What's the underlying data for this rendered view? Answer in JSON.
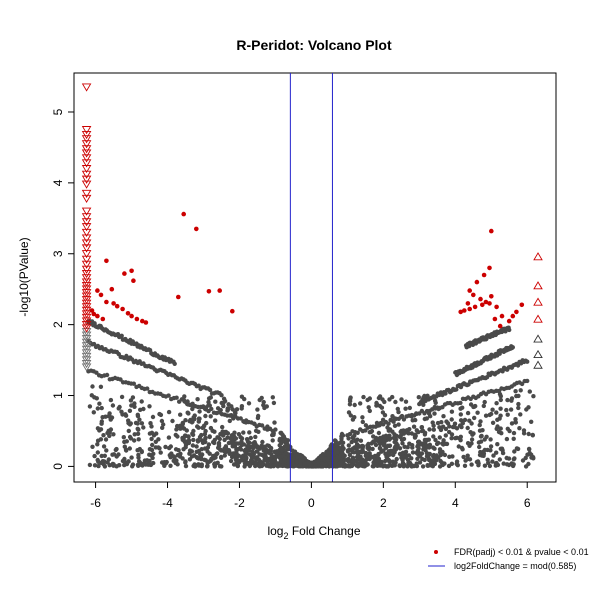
{
  "chart_data": {
    "type": "scatter",
    "title": "R-Peridot: Volcano Plot",
    "xlabel": {
      "prefix": "log",
      "subscript": "2",
      "suffix": " Fold Change"
    },
    "ylabel": "-log10(PValue)",
    "xlim": [
      -6.6,
      6.8
    ],
    "ylim": [
      -0.22,
      5.55
    ],
    "x_ticks": [
      -6,
      -4,
      -2,
      0,
      2,
      4,
      6
    ],
    "y_ticks": [
      0,
      1,
      2,
      3,
      4,
      5
    ],
    "grid": false,
    "threshold_lines": {
      "log2fc": [
        -0.585,
        0.585
      ],
      "color": "#2222cc"
    },
    "colors": {
      "background": "#4a4a4a",
      "significant": "#cc0000",
      "clipped_nonsig": "#6e6e6e"
    },
    "background_cloud": {
      "description": "dense cloud of thousands of non-significant genes",
      "v_shape_bounds": {
        "min_x": -6.2,
        "max_x": 6.2,
        "max_y_at_edges": 2.1
      },
      "bands": [
        {
          "side": "left",
          "x_from": -6.2,
          "x_to": -1.0,
          "y_at_x_from": 1.35,
          "y_at_x_to": 0.5
        },
        {
          "side": "left",
          "x_from": -6.2,
          "x_to": -2.5,
          "y_at_x_from": 1.75,
          "y_at_x_to": 1.0
        },
        {
          "side": "left",
          "x_from": -6.2,
          "x_to": -3.8,
          "y_at_x_from": 2.05,
          "y_at_x_to": 1.45
        },
        {
          "side": "right",
          "x_from": 1.0,
          "x_to": 6.0,
          "y_at_x_from": 0.45,
          "y_at_x_to": 1.2
        },
        {
          "side": "right",
          "x_from": 3.0,
          "x_to": 6.0,
          "y_at_x_from": 0.9,
          "y_at_x_to": 1.5
        },
        {
          "side": "right",
          "x_from": 4.0,
          "x_to": 5.6,
          "y_at_x_from": 1.3,
          "y_at_x_to": 1.7
        },
        {
          "side": "right",
          "x_from": 4.3,
          "x_to": 5.5,
          "y_at_x_from": 1.7,
          "y_at_x_to": 1.95
        }
      ]
    },
    "significant_points": [
      {
        "x": -3.55,
        "y": 3.56
      },
      {
        "x": -3.2,
        "y": 3.35
      },
      {
        "x": -5.0,
        "y": 2.76
      },
      {
        "x": -5.2,
        "y": 2.72
      },
      {
        "x": -5.7,
        "y": 2.9
      },
      {
        "x": -5.55,
        "y": 2.5
      },
      {
        "x": -4.95,
        "y": 2.62
      },
      {
        "x": -2.85,
        "y": 2.47
      },
      {
        "x": -2.55,
        "y": 2.48
      },
      {
        "x": -3.7,
        "y": 2.39
      },
      {
        "x": -2.2,
        "y": 2.19
      },
      {
        "x": -5.95,
        "y": 2.48
      },
      {
        "x": -5.85,
        "y": 2.42
      },
      {
        "x": -5.7,
        "y": 2.32
      },
      {
        "x": -5.5,
        "y": 2.3
      },
      {
        "x": -5.4,
        "y": 2.26
      },
      {
        "x": -5.25,
        "y": 2.22
      },
      {
        "x": -5.1,
        "y": 2.16
      },
      {
        "x": -5.0,
        "y": 2.12
      },
      {
        "x": -4.85,
        "y": 2.08
      },
      {
        "x": -4.7,
        "y": 2.05
      },
      {
        "x": -4.6,
        "y": 2.03
      },
      {
        "x": -6.05,
        "y": 2.15
      },
      {
        "x": -5.95,
        "y": 2.12
      },
      {
        "x": -6.1,
        "y": 2.2
      },
      {
        "x": -5.8,
        "y": 2.08
      },
      {
        "x": 5.0,
        "y": 3.32
      },
      {
        "x": 4.95,
        "y": 2.8
      },
      {
        "x": 4.8,
        "y": 2.7
      },
      {
        "x": 4.6,
        "y": 2.6
      },
      {
        "x": 4.4,
        "y": 2.48
      },
      {
        "x": 4.5,
        "y": 2.42
      },
      {
        "x": 4.7,
        "y": 2.36
      },
      {
        "x": 4.85,
        "y": 2.32
      },
      {
        "x": 5.0,
        "y": 2.4
      },
      {
        "x": 4.95,
        "y": 2.3
      },
      {
        "x": 4.75,
        "y": 2.28
      },
      {
        "x": 4.55,
        "y": 2.25
      },
      {
        "x": 4.4,
        "y": 2.22
      },
      {
        "x": 4.25,
        "y": 2.2
      },
      {
        "x": 4.15,
        "y": 2.18
      },
      {
        "x": 4.35,
        "y": 2.3
      },
      {
        "x": 5.15,
        "y": 2.25
      },
      {
        "x": 5.3,
        "y": 2.12
      },
      {
        "x": 5.5,
        "y": 2.05
      },
      {
        "x": 5.6,
        "y": 2.12
      },
      {
        "x": 5.7,
        "y": 2.18
      },
      {
        "x": 5.85,
        "y": 2.28
      },
      {
        "x": 5.25,
        "y": 1.98
      },
      {
        "x": 5.1,
        "y": 2.08
      }
    ],
    "clipped_left": {
      "x": -6.25,
      "marker": "triangle-down",
      "significant_y": [
        5.35,
        4.75,
        4.68,
        4.62,
        4.55,
        4.48,
        4.42,
        4.35,
        4.28,
        4.2,
        4.12,
        4.05,
        3.98,
        3.85,
        3.78,
        3.6,
        3.52,
        3.45,
        3.38,
        3.3,
        3.22,
        3.15,
        3.08,
        3.0,
        2.92,
        2.85,
        2.78,
        2.72,
        2.66,
        2.6,
        2.55,
        2.5,
        2.45,
        2.4,
        2.35,
        2.3,
        2.25,
        2.2,
        2.15,
        2.1,
        2.05,
        2.0,
        1.95
      ],
      "nonsig_y": [
        1.9,
        1.85,
        1.8,
        1.75,
        1.7,
        1.65,
        1.6,
        1.55,
        1.5,
        1.45,
        1.4
      ]
    },
    "clipped_right": {
      "x": 6.3,
      "marker": "triangle-up",
      "significant_y": [
        2.96,
        2.55,
        2.32,
        2.08
      ],
      "nonsig_y": [
        1.8,
        1.58,
        1.43
      ]
    },
    "legend": {
      "placement": "bottom-right",
      "entries": [
        {
          "label": "FDR(padj) < 0.01 & pvalue < 0.01",
          "symbol": "point",
          "color": "#cc0000"
        },
        {
          "label": "log2FoldChange = mod(0.585)",
          "symbol": "line",
          "color": "#2222cc"
        }
      ]
    }
  }
}
